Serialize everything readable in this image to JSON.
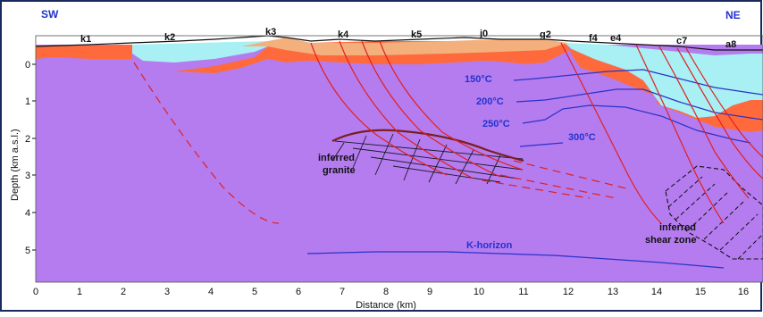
{
  "orientation": {
    "left": "SW",
    "right": "NE"
  },
  "well_labels": [
    "k1",
    "k2",
    "k3",
    "k4",
    "k5",
    "j0",
    "g2",
    "f4",
    "e4",
    "c7",
    "a8"
  ],
  "temperature_labels": [
    "150°C",
    "200°C",
    "250°C",
    "300°C"
  ],
  "annotations": {
    "granite": [
      "inferred",
      "granite"
    ],
    "shear_zone": [
      "inferred",
      "shear zone"
    ],
    "k_horizon": "K-horizon"
  },
  "axes": {
    "x_label": "Distance (km)",
    "y_label": "Depth (km a.s.l.)",
    "x_ticks": [
      "0",
      "1",
      "2",
      "3",
      "4",
      "5",
      "6",
      "7",
      "8",
      "9",
      "10",
      "11",
      "12",
      "13",
      "14",
      "15",
      "16"
    ],
    "y_ticks": [
      "0",
      "1",
      "2",
      "3",
      "4",
      "5"
    ]
  },
  "colors": {
    "basement": "#b57cf0",
    "caprock": "#ff6a3d",
    "surface_layer": "#f4b07c",
    "reservoir": "#a8f0f4",
    "fault": "#e02020",
    "isotherm": "#2a33c8",
    "granite_outline": "#7a1f1f",
    "label_blue": "#2233cc"
  }
}
